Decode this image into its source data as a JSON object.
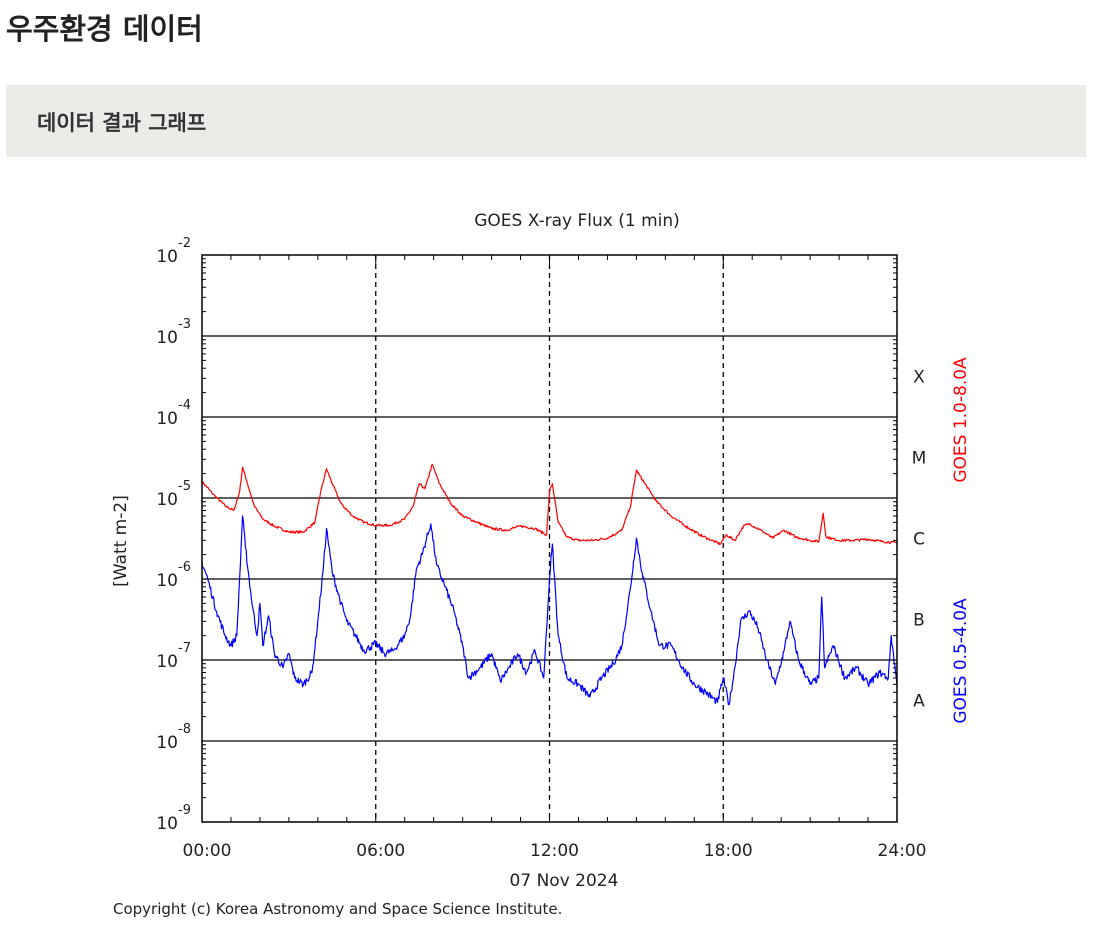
{
  "page": {
    "title": "우주환경 데이터",
    "section_title": "데이터 결과 그래프"
  },
  "chart_data": {
    "type": "line",
    "title": "GOES X-ray Flux (1 min)",
    "ylabel": "[Watt m-2]",
    "xlabel": "07 Nov 2024",
    "yscale": "log",
    "ylim": [
      1e-09,
      0.01
    ],
    "xlim": [
      0,
      24
    ],
    "x_unit": "hours UT",
    "x_ticks": [
      {
        "value": 0,
        "label": "00:00"
      },
      {
        "value": 6,
        "label": "06:00"
      },
      {
        "value": 12,
        "label": "12:00"
      },
      {
        "value": 18,
        "label": "18:00"
      },
      {
        "value": 24,
        "label": "24:00"
      }
    ],
    "y_ticks": [
      {
        "value": 0.01,
        "base": "10",
        "exp": "-2"
      },
      {
        "value": 0.001,
        "base": "10",
        "exp": "-3"
      },
      {
        "value": 0.0001,
        "base": "10",
        "exp": "-4"
      },
      {
        "value": 1e-05,
        "base": "10",
        "exp": "-5"
      },
      {
        "value": 1e-06,
        "base": "10",
        "exp": "-6"
      },
      {
        "value": 1e-07,
        "base": "10",
        "exp": "-7"
      },
      {
        "value": 1e-08,
        "base": "10",
        "exp": "-8"
      },
      {
        "value": 1e-09,
        "base": "10",
        "exp": "-9"
      }
    ],
    "flare_classes": [
      {
        "label": "X",
        "ymin": 0.0001,
        "ymax": 0.001
      },
      {
        "label": "M",
        "ymin": 1e-05,
        "ymax": 0.0001
      },
      {
        "label": "C",
        "ymin": 1e-06,
        "ymax": 1e-05
      },
      {
        "label": "B",
        "ymin": 1e-07,
        "ymax": 1e-06
      },
      {
        "label": "A",
        "ymin": 1e-08,
        "ymax": 1e-07
      }
    ],
    "grid": "solid horizontal lines at each decade, dashed vertical lines every 6 hours",
    "series": [
      {
        "name": "GOES 1.0-8.0A",
        "color": "#ff0000",
        "points": [
          [
            0.0,
            1.6e-05
          ],
          [
            0.4,
            1.1e-05
          ],
          [
            0.8,
            8e-06
          ],
          [
            1.1,
            7e-06
          ],
          [
            1.3,
            1.2e-05
          ],
          [
            1.4,
            2.4e-05
          ],
          [
            1.55,
            1.6e-05
          ],
          [
            1.8,
            8e-06
          ],
          [
            2.1,
            5.5e-06
          ],
          [
            2.5,
            4.5e-06
          ],
          [
            3.0,
            3.8e-06
          ],
          [
            3.5,
            3.8e-06
          ],
          [
            3.9,
            5e-06
          ],
          [
            4.1,
            1.2e-05
          ],
          [
            4.3,
            2.3e-05
          ],
          [
            4.5,
            1.5e-05
          ],
          [
            4.8,
            8.5e-06
          ],
          [
            5.2,
            6e-06
          ],
          [
            5.6,
            5e-06
          ],
          [
            6.0,
            4.6e-06
          ],
          [
            6.5,
            4.6e-06
          ],
          [
            7.0,
            5.5e-06
          ],
          [
            7.3,
            8e-06
          ],
          [
            7.5,
            1.5e-05
          ],
          [
            7.7,
            1.3e-05
          ],
          [
            7.95,
            2.6e-05
          ],
          [
            8.2,
            1.5e-05
          ],
          [
            8.6,
            8.5e-06
          ],
          [
            9.0,
            6e-06
          ],
          [
            9.5,
            5e-06
          ],
          [
            10.0,
            4.2e-06
          ],
          [
            10.5,
            4e-06
          ],
          [
            11.0,
            4.5e-06
          ],
          [
            11.5,
            4.2e-06
          ],
          [
            11.9,
            3.5e-06
          ],
          [
            12.0,
            1.2e-05
          ],
          [
            12.1,
            1.5e-05
          ],
          [
            12.3,
            5e-06
          ],
          [
            12.6,
            3.3e-06
          ],
          [
            13.0,
            3e-06
          ],
          [
            13.5,
            3e-06
          ],
          [
            14.0,
            3.2e-06
          ],
          [
            14.5,
            4e-06
          ],
          [
            14.8,
            8e-06
          ],
          [
            15.0,
            2.2e-05
          ],
          [
            15.3,
            1.5e-05
          ],
          [
            15.7,
            9e-06
          ],
          [
            16.2,
            6e-06
          ],
          [
            16.7,
            4.5e-06
          ],
          [
            17.2,
            3.5e-06
          ],
          [
            17.6,
            3e-06
          ],
          [
            17.9,
            2.7e-06
          ],
          [
            18.1,
            3.5e-06
          ],
          [
            18.4,
            3e-06
          ],
          [
            18.7,
            4.5e-06
          ],
          [
            18.9,
            4.8e-06
          ],
          [
            19.3,
            4e-06
          ],
          [
            19.7,
            3.2e-06
          ],
          [
            20.1,
            4e-06
          ],
          [
            20.5,
            3.3e-06
          ],
          [
            21.0,
            3e-06
          ],
          [
            21.3,
            2.9e-06
          ],
          [
            21.45,
            6.5e-06
          ],
          [
            21.55,
            3.3e-06
          ],
          [
            22.0,
            3e-06
          ],
          [
            22.5,
            3e-06
          ],
          [
            23.0,
            3.1e-06
          ],
          [
            23.5,
            2.9e-06
          ],
          [
            24.0,
            2.8e-06
          ]
        ]
      },
      {
        "name": "GOES 0.5-4.0A",
        "color": "#0000ff",
        "points": [
          [
            0.0,
            1.6e-06
          ],
          [
            0.2,
            1e-06
          ],
          [
            0.5,
            4e-07
          ],
          [
            0.8,
            2e-07
          ],
          [
            1.0,
            1.5e-07
          ],
          [
            1.2,
            2e-07
          ],
          [
            1.3,
            1e-06
          ],
          [
            1.4,
            6e-06
          ],
          [
            1.5,
            2.5e-06
          ],
          [
            1.7,
            6e-07
          ],
          [
            1.9,
            2e-07
          ],
          [
            2.0,
            5e-07
          ],
          [
            2.1,
            1.5e-07
          ],
          [
            2.3,
            3.5e-07
          ],
          [
            2.5,
            1.2e-07
          ],
          [
            2.8,
            8e-08
          ],
          [
            3.0,
            1.2e-07
          ],
          [
            3.2,
            6e-08
          ],
          [
            3.5,
            5e-08
          ],
          [
            3.8,
            7e-08
          ],
          [
            4.0,
            3e-07
          ],
          [
            4.2,
            1.5e-06
          ],
          [
            4.3,
            4.2e-06
          ],
          [
            4.5,
            1.2e-06
          ],
          [
            4.8,
            5e-07
          ],
          [
            5.0,
            3e-07
          ],
          [
            5.3,
            2e-07
          ],
          [
            5.6,
            1.3e-07
          ],
          [
            6.0,
            1.6e-07
          ],
          [
            6.3,
            1.2e-07
          ],
          [
            6.6,
            1.3e-07
          ],
          [
            7.0,
            2e-07
          ],
          [
            7.2,
            3.5e-07
          ],
          [
            7.4,
            1.3e-06
          ],
          [
            7.6,
            2e-06
          ],
          [
            7.9,
            4.8e-06
          ],
          [
            8.1,
            1.5e-06
          ],
          [
            8.4,
            8e-07
          ],
          [
            8.7,
            4e-07
          ],
          [
            9.0,
            1.5e-07
          ],
          [
            9.2,
            6e-08
          ],
          [
            9.6,
            8e-08
          ],
          [
            10.0,
            1.2e-07
          ],
          [
            10.3,
            5.5e-08
          ],
          [
            10.6,
            8e-08
          ],
          [
            10.9,
            1.2e-07
          ],
          [
            11.2,
            7e-08
          ],
          [
            11.5,
            1.3e-07
          ],
          [
            11.8,
            6e-08
          ],
          [
            12.0,
            1e-06
          ],
          [
            12.1,
            2.7e-06
          ],
          [
            12.3,
            2e-07
          ],
          [
            12.6,
            6e-08
          ],
          [
            13.0,
            5e-08
          ],
          [
            13.4,
            3.5e-08
          ],
          [
            13.8,
            6e-08
          ],
          [
            14.2,
            9e-08
          ],
          [
            14.5,
            1.5e-07
          ],
          [
            14.8,
            8e-07
          ],
          [
            15.0,
            3.2e-06
          ],
          [
            15.2,
            1.2e-06
          ],
          [
            15.5,
            4e-07
          ],
          [
            15.8,
            1.5e-07
          ],
          [
            16.2,
            1.5e-07
          ],
          [
            16.6,
            8e-08
          ],
          [
            17.0,
            5e-08
          ],
          [
            17.4,
            4e-08
          ],
          [
            17.8,
            3e-08
          ],
          [
            18.0,
            6e-08
          ],
          [
            18.2,
            2.8e-08
          ],
          [
            18.4,
            8e-08
          ],
          [
            18.6,
            3e-07
          ],
          [
            18.9,
            4e-07
          ],
          [
            19.2,
            2.5e-07
          ],
          [
            19.5,
            1e-07
          ],
          [
            19.8,
            5e-08
          ],
          [
            20.1,
            1.3e-07
          ],
          [
            20.3,
            3e-07
          ],
          [
            20.6,
            1e-07
          ],
          [
            21.0,
            5e-08
          ],
          [
            21.3,
            6e-08
          ],
          [
            21.4,
            6e-07
          ],
          [
            21.5,
            8e-08
          ],
          [
            21.8,
            1.5e-07
          ],
          [
            22.2,
            6e-08
          ],
          [
            22.6,
            8e-08
          ],
          [
            23.0,
            5e-08
          ],
          [
            23.4,
            7e-08
          ],
          [
            23.7,
            6e-08
          ],
          [
            23.8,
            2e-07
          ],
          [
            24.0,
            5e-08
          ]
        ]
      }
    ],
    "copyright": "Copyright (c) Korea Astronomy and Space Science Institute."
  }
}
